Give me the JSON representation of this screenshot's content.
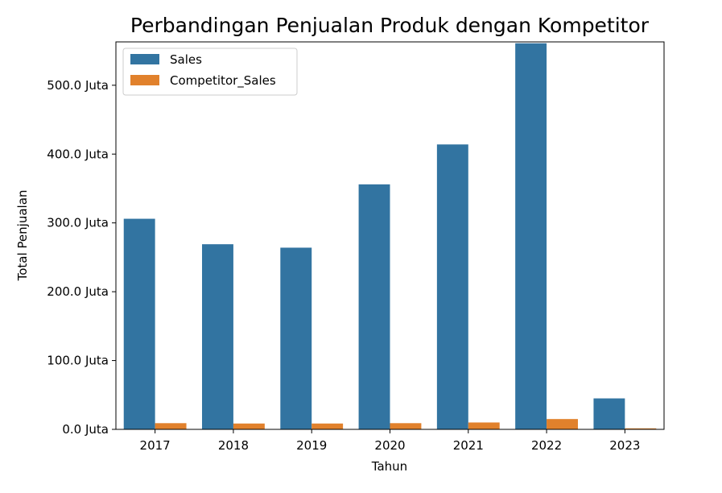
{
  "chart_data": {
    "type": "bar",
    "title": "Perbandingan Penjualan Produk dengan Kompetitor",
    "xlabel": "Tahun",
    "ylabel": "Total Penjualan",
    "categories": [
      "2017",
      "2018",
      "2019",
      "2020",
      "2021",
      "2022",
      "2023"
    ],
    "series": [
      {
        "name": "Sales",
        "color": "#3274a1",
        "values": [
          306,
          269,
          264,
          356,
          414,
          561,
          45
        ]
      },
      {
        "name": "Competitor_Sales",
        "color": "#e1812c",
        "values": [
          9,
          8.5,
          8.5,
          9,
          10,
          15,
          1.5
        ]
      }
    ],
    "ylim": [
      0,
      563
    ],
    "yticks": [
      0,
      100,
      200,
      300,
      400,
      500
    ],
    "ytick_labels": [
      "0.0 Juta",
      "100.0 Juta",
      "200.0 Juta",
      "300.0 Juta",
      "400.0 Juta",
      "500.0 Juta"
    ],
    "y_unit": "Juta",
    "grid": false,
    "legend_position": "upper-left"
  }
}
